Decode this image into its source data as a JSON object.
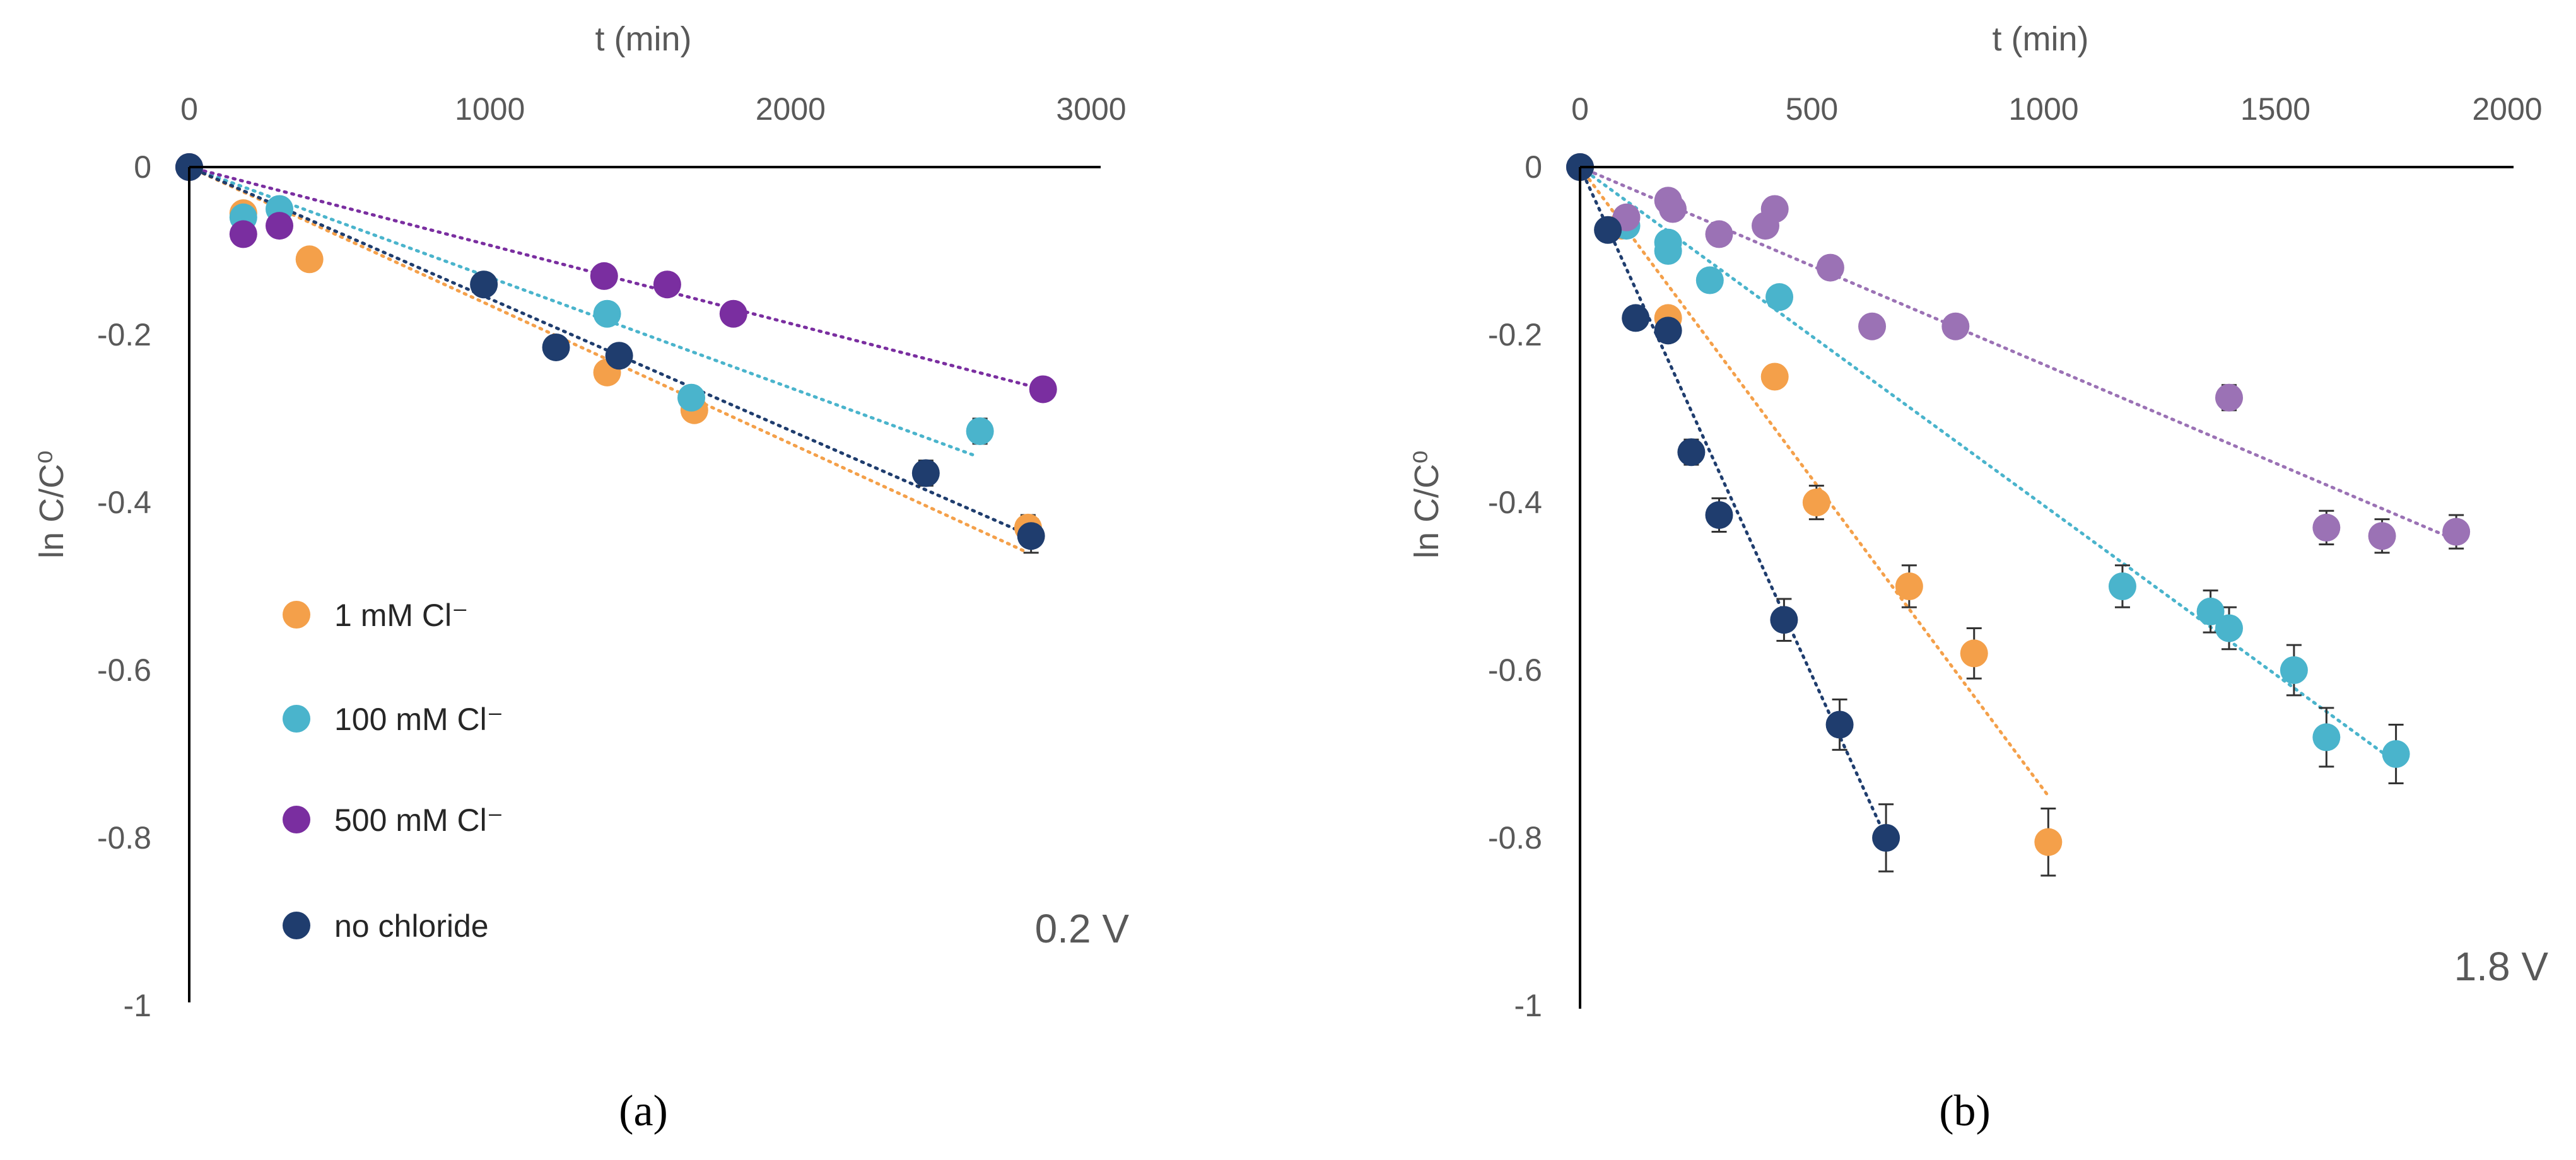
{
  "colors": {
    "1mM": "#f4a04a",
    "100mM": "#4ab4cc",
    "500mM_a": "#7a2ea0",
    "500mM_b": "#9b72b5",
    "none": "#1f3d6e",
    "axis": "#000000",
    "errorbar": "#333333"
  },
  "chart_data": [
    {
      "type": "scatter",
      "panel_label": "(a)",
      "voltage_label": "0.2 V",
      "xlabel": "t (min)",
      "ylabel": "ln C/C⁰",
      "xlim": [
        0,
        3000
      ],
      "ylim": [
        -1,
        0
      ],
      "x_ticks": [
        "0",
        "1000",
        "2000",
        "3000"
      ],
      "y_ticks": [
        "0",
        "-0.2",
        "-0.4",
        "-0.6",
        "-0.8",
        "-1"
      ],
      "legend": [
        {
          "label": "1 mM Cl⁻",
          "series": "1mM"
        },
        {
          "label": "100 mM Cl⁻",
          "series": "100mM"
        },
        {
          "label": "500 mM Cl⁻",
          "series": "500mM"
        },
        {
          "label": "no chloride",
          "series": "none"
        }
      ],
      "series": [
        {
          "name": "1 mM Cl⁻",
          "key": "1mM",
          "points": [
            [
              0,
              0
            ],
            [
              180,
              -0.055
            ],
            [
              400,
              -0.11
            ],
            [
              1390,
              -0.245
            ],
            [
              1680,
              -0.29
            ],
            [
              2790,
              -0.43
            ]
          ],
          "errors": [
            0,
            0,
            0,
            0,
            0,
            0.015
          ],
          "trend": [
            [
              0,
              0
            ],
            [
              2790,
              -0.46
            ]
          ]
        },
        {
          "name": "100 mM Cl⁻",
          "key": "100mM",
          "points": [
            [
              0,
              0
            ],
            [
              180,
              -0.06
            ],
            [
              300,
              -0.05
            ],
            [
              1390,
              -0.175
            ],
            [
              1670,
              -0.275
            ],
            [
              2630,
              -0.315
            ]
          ],
          "errors": [
            0,
            0,
            0,
            0,
            0,
            0.015
          ],
          "trend": [
            [
              0,
              0
            ],
            [
              2620,
              -0.345
            ]
          ]
        },
        {
          "name": "500 mM Cl⁻",
          "key": "500mM",
          "points": [
            [
              0,
              0
            ],
            [
              180,
              -0.08
            ],
            [
              300,
              -0.07
            ],
            [
              1380,
              -0.13
            ],
            [
              1590,
              -0.14
            ],
            [
              1810,
              -0.175
            ],
            [
              2840,
              -0.265
            ]
          ],
          "errors": [
            0,
            0,
            0,
            0,
            0,
            0,
            0
          ],
          "trend": [
            [
              0,
              0
            ],
            [
              2840,
              -0.265
            ]
          ]
        },
        {
          "name": "no chloride",
          "key": "none",
          "points": [
            [
              0,
              0
            ],
            [
              980,
              -0.14
            ],
            [
              1220,
              -0.215
            ],
            [
              1430,
              -0.225
            ],
            [
              2450,
              -0.365
            ],
            [
              2800,
              -0.44
            ]
          ],
          "errors": [
            0,
            0,
            0,
            0,
            0.015,
            0.02
          ],
          "trend": [
            [
              0,
              0
            ],
            [
              2800,
              -0.44
            ]
          ]
        }
      ]
    },
    {
      "type": "scatter",
      "panel_label": "(b)",
      "voltage_label": "1.8 V",
      "xlabel": "t (min)",
      "ylabel": "ln C/C⁰",
      "xlim": [
        0,
        2000
      ],
      "ylim": [
        -1,
        0
      ],
      "x_ticks": [
        "0",
        "500",
        "1000",
        "1500",
        "2000"
      ],
      "y_ticks": [
        "0",
        "-0.2",
        "-0.4",
        "-0.6",
        "-0.8",
        "-1"
      ],
      "series": [
        {
          "name": "1 mM Cl⁻",
          "key": "1mM",
          "points": [
            [
              0,
              0
            ],
            [
              90,
              -0.07
            ],
            [
              190,
              -0.18
            ],
            [
              420,
              -0.25
            ],
            [
              510,
              -0.4
            ],
            [
              710,
              -0.5
            ],
            [
              850,
              -0.58
            ],
            [
              1010,
              -0.805
            ]
          ],
          "errors": [
            0,
            0,
            0,
            0,
            0.02,
            0.025,
            0.03,
            0.04
          ],
          "trend": [
            [
              0,
              0
            ],
            [
              1010,
              -0.75
            ]
          ]
        },
        {
          "name": "100 mM Cl⁻",
          "key": "100mM",
          "points": [
            [
              0,
              0
            ],
            [
              100,
              -0.07
            ],
            [
              190,
              -0.09
            ],
            [
              190,
              -0.1
            ],
            [
              280,
              -0.135
            ],
            [
              430,
              -0.155
            ],
            [
              1170,
              -0.5
            ],
            [
              1360,
              -0.53
            ],
            [
              1400,
              -0.55
            ],
            [
              1540,
              -0.6
            ],
            [
              1610,
              -0.68
            ],
            [
              1760,
              -0.7
            ]
          ],
          "errors": [
            0,
            0,
            0,
            0,
            0,
            0,
            0.025,
            0.025,
            0.025,
            0.03,
            0.035,
            0.035
          ],
          "trend": [
            [
              0,
              0
            ],
            [
              1760,
              -0.71
            ]
          ]
        },
        {
          "name": "500 mM Cl⁻",
          "key": "500mM",
          "points": [
            [
              0,
              0
            ],
            [
              100,
              -0.06
            ],
            [
              190,
              -0.04
            ],
            [
              200,
              -0.05
            ],
            [
              300,
              -0.08
            ],
            [
              400,
              -0.07
            ],
            [
              420,
              -0.05
            ],
            [
              540,
              -0.12
            ],
            [
              630,
              -0.19
            ],
            [
              810,
              -0.19
            ],
            [
              1400,
              -0.275
            ],
            [
              1610,
              -0.43
            ],
            [
              1730,
              -0.44
            ],
            [
              1890,
              -0.435
            ]
          ],
          "errors": [
            0,
            0,
            0,
            0,
            0,
            0,
            0,
            0,
            0,
            0,
            0.015,
            0.02,
            0.02,
            0.02
          ],
          "trend": [
            [
              0,
              0
            ],
            [
              1890,
              -0.445
            ]
          ]
        },
        {
          "name": "no chloride",
          "key": "none",
          "points": [
            [
              0,
              0
            ],
            [
              60,
              -0.075
            ],
            [
              120,
              -0.18
            ],
            [
              190,
              -0.195
            ],
            [
              240,
              -0.34
            ],
            [
              300,
              -0.415
            ],
            [
              440,
              -0.54
            ],
            [
              560,
              -0.665
            ],
            [
              660,
              -0.8
            ]
          ],
          "errors": [
            0,
            0,
            0,
            0,
            0.015,
            0.02,
            0.025,
            0.03,
            0.04
          ],
          "trend": [
            [
              0,
              0
            ],
            [
              660,
              -0.8
            ]
          ]
        }
      ]
    }
  ]
}
